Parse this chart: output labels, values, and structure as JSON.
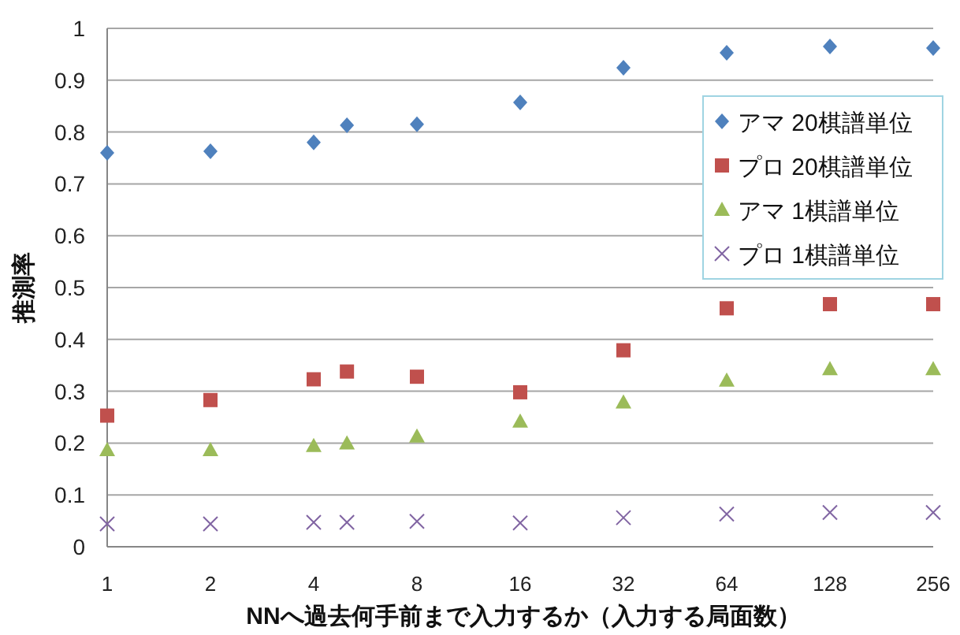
{
  "chart_data": {
    "type": "scatter",
    "xlabel": "NNへ過去何手前まで入力するか（入力する局面数）",
    "ylabel": "推測率",
    "x": [
      1,
      2,
      4,
      5,
      8,
      16,
      32,
      64,
      128,
      256
    ],
    "series": [
      {
        "name": "アマ 20棋譜単位",
        "color": "#4f81bd",
        "marker": "diamond",
        "values": [
          0.76,
          0.763,
          0.78,
          0.813,
          0.815,
          0.857,
          0.924,
          0.953,
          0.965,
          0.962
        ]
      },
      {
        "name": "プロ 20棋譜単位",
        "color": "#c0504d",
        "marker": "square",
        "values": [
          0.253,
          0.283,
          0.323,
          0.338,
          0.328,
          0.298,
          0.379,
          0.46,
          0.468,
          0.468
        ]
      },
      {
        "name": "アマ 1棋譜単位",
        "color": "#9bbb59",
        "marker": "triangle",
        "values": [
          0.187,
          0.187,
          0.195,
          0.2,
          0.213,
          0.242,
          0.279,
          0.321,
          0.343,
          0.343
        ]
      },
      {
        "name": "プロ 1棋譜単位",
        "color": "#8064a2",
        "marker": "cross",
        "values": [
          0.044,
          0.044,
          0.047,
          0.047,
          0.049,
          0.046,
          0.056,
          0.063,
          0.066,
          0.066
        ]
      }
    ],
    "log": "x",
    "xlim": [
      1,
      256
    ],
    "xticks": [
      1,
      2,
      4,
      8,
      16,
      32,
      64,
      128,
      256
    ],
    "ylim": [
      0,
      1
    ],
    "yticks": [
      0,
      0.1,
      0.2,
      0.3,
      0.4,
      0.5,
      0.6,
      0.7,
      0.8,
      0.9,
      1
    ],
    "grid": "y",
    "legend": "right"
  }
}
